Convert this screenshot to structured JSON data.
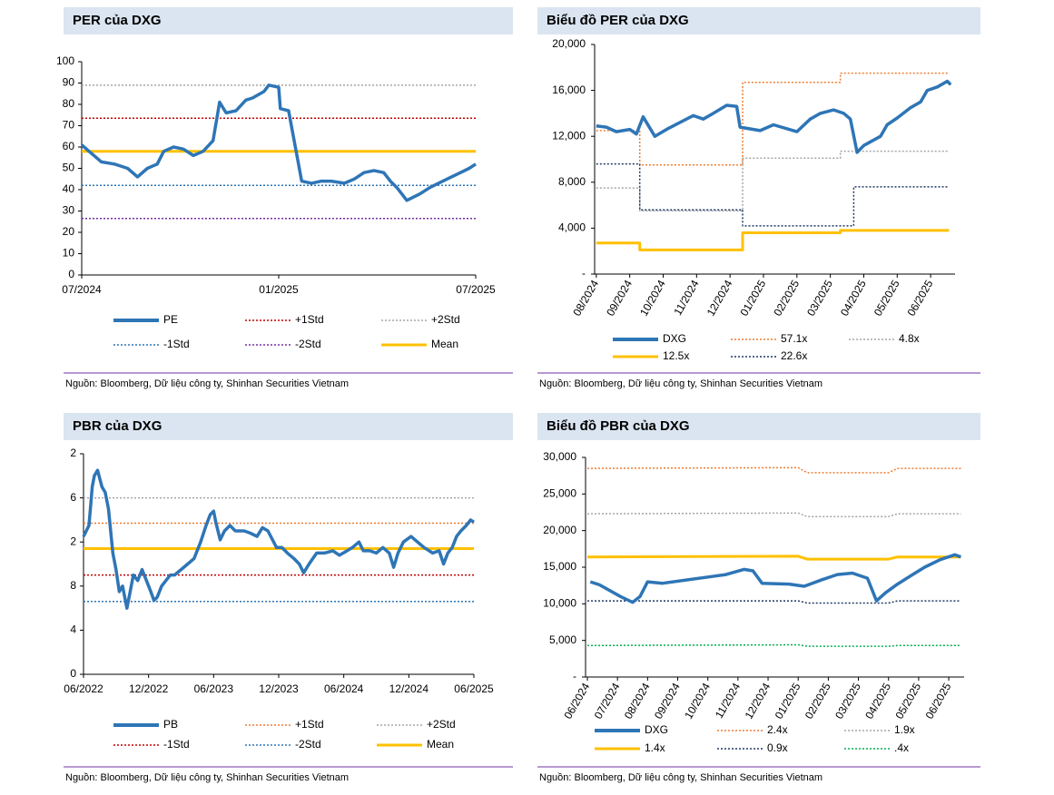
{
  "chart_data": [
    {
      "type": "line",
      "title": "PER của DXG",
      "source": "Nguồn: Bloomberg, Dữ liệu công ty, Shinhan Securities Vietnam",
      "xlim": [
        0,
        12
      ],
      "xticks": [
        {
          "value": 0,
          "label": "07/2024"
        },
        {
          "value": 6,
          "label": "01/2025"
        },
        {
          "value": 12,
          "label": "07/2025"
        }
      ],
      "ylim": [
        0,
        100
      ],
      "yticks": [
        0,
        10,
        20,
        30,
        40,
        50,
        60,
        70,
        80,
        90,
        100
      ],
      "series": [
        {
          "name": "PE",
          "color": "#2e75b6",
          "style": "solid",
          "x": [
            0,
            0.3,
            0.6,
            1.0,
            1.4,
            1.7,
            2.0,
            2.3,
            2.5,
            2.8,
            3.1,
            3.4,
            3.7,
            4.0,
            4.2,
            4.4,
            4.7,
            5.0,
            5.2,
            5.55,
            5.7,
            6.0,
            6.05,
            6.3,
            6.7,
            7.0,
            7.3,
            7.6,
            8.0,
            8.3,
            8.6,
            8.9,
            9.2,
            9.4,
            9.6,
            9.9,
            10.3,
            10.6,
            11.0,
            11.4,
            11.8,
            12.0
          ],
          "values": [
            61,
            57,
            53,
            52,
            50,
            46,
            50,
            52,
            58,
            60,
            59,
            56,
            58,
            63,
            81,
            76,
            77,
            82,
            83,
            86,
            89,
            88,
            78,
            77,
            44,
            43,
            44,
            44,
            43,
            45,
            48,
            49,
            48,
            44,
            41,
            35,
            38,
            41,
            44,
            47,
            50,
            52
          ]
        },
        {
          "name": "+1Std",
          "color": "#c00000",
          "style": "dotted",
          "value": 73.5
        },
        {
          "name": "+2Std",
          "color": "#a5a5a5",
          "style": "dotted",
          "value": 89
        },
        {
          "name": "-1Std",
          "color": "#2e75b6",
          "style": "dotted",
          "value": 42
        },
        {
          "name": "-2Std",
          "color": "#7030a0",
          "style": "dotted",
          "value": 26.5
        },
        {
          "name": "Mean",
          "color": "#ffc000",
          "style": "thick",
          "value": 58
        }
      ]
    },
    {
      "type": "line",
      "title": "Biểu đồ PER của DXG",
      "source": "Nguồn: Bloomberg, Dữ liệu công ty, Shinhan Securities Vietnam",
      "xlim": [
        -0.05,
        10.73
      ],
      "xticks": [
        {
          "value": 0,
          "label": "08/2024"
        },
        {
          "value": 1,
          "label": "09/2024"
        },
        {
          "value": 2,
          "label": "10/2024"
        },
        {
          "value": 3,
          "label": "11/2024"
        },
        {
          "value": 4,
          "label": "12/2024"
        },
        {
          "value": 5,
          "label": "01/2025"
        },
        {
          "value": 6,
          "label": "02/2025"
        },
        {
          "value": 7,
          "label": "03/2025"
        },
        {
          "value": 8,
          "label": "04/2025"
        },
        {
          "value": 9,
          "label": "05/2025"
        },
        {
          "value": 10,
          "label": "06/2025"
        }
      ],
      "ylim": [
        0,
        20000
      ],
      "yticks": [
        {
          "value": 0,
          "label": "-"
        },
        {
          "value": 4000,
          "label": "4,000"
        },
        {
          "value": 8000,
          "label": "8,000"
        },
        {
          "value": 12000,
          "label": "12,000"
        },
        {
          "value": 16000,
          "label": "16,000"
        },
        {
          "value": 20000,
          "label": "20,000"
        }
      ],
      "series": [
        {
          "name": "DXG",
          "color": "#2e75b6",
          "style": "solid",
          "x": [
            0,
            0.3,
            0.6,
            1.0,
            1.2,
            1.4,
            1.75,
            2.1,
            2.9,
            3.2,
            3.5,
            3.9,
            4.2,
            4.3,
            4.9,
            5.3,
            6.0,
            6.4,
            6.7,
            7.1,
            7.4,
            7.6,
            7.8,
            8.0,
            8.5,
            8.7,
            9.0,
            9.4,
            9.7,
            9.9,
            10.2,
            10.5,
            10.6
          ],
          "values": [
            12900,
            12800,
            12400,
            12600,
            12200,
            13700,
            12000,
            12600,
            13800,
            13500,
            14000,
            14700,
            14600,
            12800,
            12500,
            13000,
            12400,
            13500,
            14000,
            14300,
            14000,
            13500,
            10600,
            11200,
            12000,
            13000,
            13600,
            14500,
            15000,
            16000,
            16300,
            16800,
            16500
          ]
        },
        {
          "name": "57.1x",
          "color": "#ed7d31",
          "style": "dotted",
          "x": [
            0,
            1.3,
            1.3,
            4.375,
            4.375,
            7.3,
            7.3,
            10.55
          ],
          "values": [
            12500,
            12500,
            9500,
            9500,
            16700,
            16700,
            17500,
            17500
          ]
        },
        {
          "name": "4.8x",
          "color": "#a5a5a5",
          "style": "dotted",
          "x": [
            0,
            1.3,
            1.3,
            4.375,
            4.375,
            7.3,
            7.3,
            10.55
          ],
          "values": [
            7500,
            7500,
            5500,
            5500,
            10100,
            10100,
            10700,
            10700
          ]
        },
        {
          "name": "12.5x",
          "color": "#ffc000",
          "style": "thick",
          "x": [
            0,
            1.3,
            1.3,
            4.375,
            4.375,
            7.3,
            7.3,
            10.55
          ],
          "values": [
            2700,
            2700,
            2100,
            2100,
            3600,
            3600,
            3800,
            3800
          ]
        },
        {
          "name": "22.6x",
          "color": "#1f3864",
          "style": "dotted",
          "x": [
            0,
            1.3,
            1.3,
            4.375,
            4.375,
            7.7,
            7.7,
            10.55
          ],
          "values": [
            9600,
            9600,
            5600,
            5600,
            4200,
            4200,
            7600,
            7600
          ]
        }
      ]
    },
    {
      "type": "line",
      "title": "PBR của DXG",
      "source": "Nguồn: Bloomberg, Dữ liệu công ty, Shinhan Securities Vietnam",
      "xlim": [
        0,
        36
      ],
      "xticks": [
        {
          "value": 0,
          "label": "06/2022"
        },
        {
          "value": 6,
          "label": "12/2022"
        },
        {
          "value": 12,
          "label": "06/2023"
        },
        {
          "value": 18,
          "label": "12/2023"
        },
        {
          "value": 24,
          "label": "06/2024"
        },
        {
          "value": 30,
          "label": "12/2024"
        },
        {
          "value": 36,
          "label": "06/2025"
        }
      ],
      "ylim": [
        0,
        2
      ],
      "yticks": [
        0,
        {
          "value": 0.4,
          "label": "4"
        },
        {
          "value": 0.8,
          "label": "8"
        },
        {
          "value": 1.2,
          "label": "2"
        },
        {
          "value": 1.6,
          "label": "6"
        },
        2
      ],
      "series": [
        {
          "name": "PB",
          "color": "#2e75b6",
          "style": "solid",
          "x": [
            0,
            0.5,
            0.8,
            1.0,
            1.3,
            1.7,
            2.0,
            2.3,
            2.7,
            3.0,
            3.3,
            3.6,
            4.0,
            4.3,
            4.6,
            5.0,
            5.4,
            5.8,
            6.2,
            6.5,
            6.8,
            7.2,
            7.6,
            8.0,
            8.4,
            9.0,
            9.6,
            10.2,
            10.8,
            11.3,
            11.7,
            12.0,
            12.2,
            12.6,
            13.0,
            13.5,
            14.0,
            14.8,
            15.4,
            16.0,
            16.5,
            17.0,
            17.8,
            18.3,
            18.8,
            19.4,
            19.9,
            20.3,
            20.8,
            21.5,
            22.2,
            23.0,
            23.6,
            24.3,
            24.8,
            25.4,
            25.8,
            26.4,
            27.0,
            27.6,
            28.2,
            28.6,
            29.0,
            29.5,
            30.2,
            30.8,
            31.4,
            32.2,
            32.8,
            33.2,
            33.6,
            34.0,
            34.4,
            34.8,
            35.3,
            35.7,
            36.0
          ],
          "values": [
            1.25,
            1.35,
            1.7,
            1.8,
            1.85,
            1.7,
            1.65,
            1.5,
            1.1,
            0.95,
            0.75,
            0.8,
            0.6,
            0.75,
            0.9,
            0.85,
            0.95,
            0.85,
            0.75,
            0.67,
            0.7,
            0.8,
            0.85,
            0.9,
            0.9,
            0.95,
            1.0,
            1.05,
            1.2,
            1.35,
            1.45,
            1.48,
            1.38,
            1.22,
            1.3,
            1.35,
            1.3,
            1.3,
            1.28,
            1.25,
            1.33,
            1.3,
            1.15,
            1.15,
            1.1,
            1.05,
            1.0,
            0.92,
            1.0,
            1.1,
            1.1,
            1.12,
            1.08,
            1.12,
            1.15,
            1.2,
            1.12,
            1.12,
            1.1,
            1.15,
            1.1,
            0.97,
            1.1,
            1.2,
            1.25,
            1.2,
            1.15,
            1.1,
            1.12,
            1.0,
            1.1,
            1.15,
            1.25,
            1.3,
            1.35,
            1.4,
            1.38
          ]
        },
        {
          "name": "+1Std",
          "color": "#ed7d31",
          "style": "dotted",
          "value": 1.37
        },
        {
          "name": "+2Std",
          "color": "#a5a5a5",
          "style": "dotted",
          "value": 1.6
        },
        {
          "name": "-1Std",
          "color": "#c00000",
          "style": "dotted",
          "value": 0.9
        },
        {
          "name": "-2Std",
          "color": "#2e75b6",
          "style": "dotted",
          "value": 0.66
        },
        {
          "name": "Mean",
          "color": "#ffc000",
          "style": "thick",
          "value": 1.14
        }
      ]
    },
    {
      "type": "line",
      "title": "Biểu đồ PBR của DXG",
      "source": "Nguồn: Bloomberg, Dữ liệu công ty, Shinhan Securities Vietnam",
      "xlim": [
        -0.06,
        12.51
      ],
      "xticks": [
        {
          "value": 0,
          "label": "06/2024"
        },
        {
          "value": 1,
          "label": "07/2024"
        },
        {
          "value": 2,
          "label": "08/2024"
        },
        {
          "value": 3,
          "label": "09/2024"
        },
        {
          "value": 4,
          "label": "10/2024"
        },
        {
          "value": 5,
          "label": "11/2024"
        },
        {
          "value": 6,
          "label": "12/2024"
        },
        {
          "value": 7,
          "label": "01/2025"
        },
        {
          "value": 8,
          "label": "02/2025"
        },
        {
          "value": 9,
          "label": "03/2025"
        },
        {
          "value": 10,
          "label": "04/2025"
        },
        {
          "value": 11,
          "label": "05/2025"
        },
        {
          "value": 12,
          "label": "06/2025"
        }
      ],
      "ylim": [
        0,
        30000
      ],
      "yticks": [
        {
          "value": 0,
          "label": "-"
        },
        {
          "value": 5000,
          "label": "5,000"
        },
        {
          "value": 10000,
          "label": "10,000"
        },
        {
          "value": 15000,
          "label": "15,000"
        },
        {
          "value": 20000,
          "label": "20,000"
        },
        {
          "value": 25000,
          "label": "25,000"
        },
        {
          "value": 30000,
          "label": "30,000"
        }
      ],
      "series": [
        {
          "name": "DXG",
          "color": "#2e75b6",
          "style": "solid",
          "x": [
            0.1,
            0.4,
            1.1,
            1.5,
            1.75,
            2.0,
            2.5,
            3.9,
            4.6,
            5.2,
            5.5,
            5.8,
            6.7,
            7.2,
            7.8,
            8.3,
            8.8,
            9.3,
            9.6,
            9.9,
            10.3,
            10.8,
            11.2,
            11.7,
            12.2,
            12.4
          ],
          "values": [
            13000,
            12600,
            11000,
            10200,
            11000,
            13000,
            12800,
            13600,
            14000,
            14700,
            14500,
            12800,
            12700,
            12400,
            13300,
            14000,
            14200,
            13500,
            10400,
            11500,
            12700,
            14000,
            15000,
            16000,
            16700,
            16400
          ]
        },
        {
          "name": "2.4x",
          "color": "#ed7d31",
          "style": "dotted",
          "x": [
            0,
            7.0,
            7.3,
            10.0,
            10.3,
            12.4
          ],
          "values": [
            28500,
            28600,
            27900,
            27900,
            28500,
            28500
          ]
        },
        {
          "name": "1.9x",
          "color": "#a5a5a5",
          "style": "dotted",
          "x": [
            0,
            7.0,
            7.3,
            10.0,
            10.3,
            12.4
          ],
          "values": [
            22300,
            22400,
            21900,
            21900,
            22300,
            22300
          ]
        },
        {
          "name": "1.4x",
          "color": "#ffc000",
          "style": "thick",
          "x": [
            0,
            7.0,
            7.3,
            10.0,
            10.3,
            12.4
          ],
          "values": [
            16400,
            16500,
            16100,
            16100,
            16400,
            16400
          ]
        },
        {
          "name": "0.9x",
          "color": "#1f3864",
          "style": "dotted",
          "x": [
            0,
            7.0,
            7.3,
            10.0,
            10.3,
            12.4
          ],
          "values": [
            10400,
            10400,
            10100,
            10100,
            10400,
            10400
          ]
        },
        {
          "name": ".4x",
          "color": "#00b050",
          "style": "dotted",
          "x": [
            0,
            7.0,
            7.3,
            10.0,
            10.3,
            12.4
          ],
          "values": [
            4300,
            4400,
            4200,
            4200,
            4300,
            4300
          ]
        }
      ]
    }
  ]
}
